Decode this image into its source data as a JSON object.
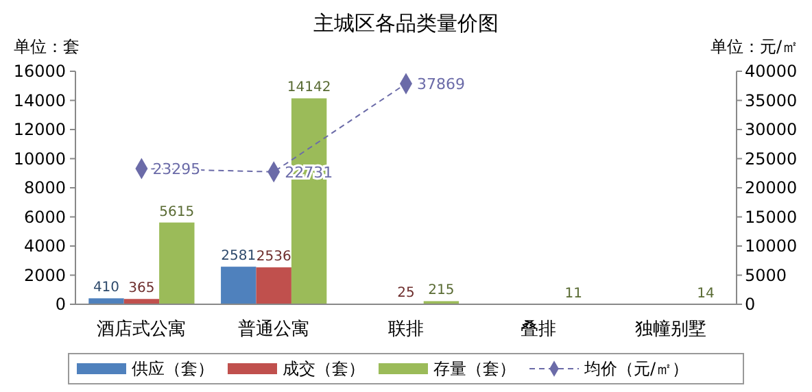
{
  "chart_data": {
    "type": "bar",
    "title": "主城区各品类量价图",
    "ylabel": "单位：套",
    "y2label": "单位：元/㎡",
    "categories": [
      "酒店式公寓",
      "普通公寓",
      "联排",
      "叠排",
      "独幢别墅"
    ],
    "series": [
      {
        "name": "供应（套）",
        "color": "#4f81bd",
        "values": [
          410,
          2581,
          null,
          null,
          null
        ]
      },
      {
        "name": "成交（套）",
        "color": "#c0504d",
        "values": [
          365,
          2536,
          25,
          null,
          null
        ]
      },
      {
        "name": "存量（套）",
        "color": "#9bbb59",
        "values": [
          5615,
          14142,
          215,
          11,
          14
        ]
      },
      {
        "name": "均价（元/㎡）",
        "type": "line",
        "axis": "y2",
        "color": "#6b6ba8",
        "marker": "diamond",
        "line_style": "dashed",
        "values": [
          23295,
          22731,
          37869,
          null,
          null
        ]
      }
    ],
    "ylim": [
      0,
      16000
    ],
    "yticks": [
      0,
      2000,
      4000,
      6000,
      8000,
      10000,
      12000,
      14000,
      16000
    ],
    "y2lim": [
      0,
      40000
    ],
    "y2ticks": [
      0,
      5000,
      10000,
      15000,
      20000,
      25000,
      30000,
      35000,
      40000
    ],
    "data_labels": true,
    "grid": false,
    "legend": "bottom"
  }
}
